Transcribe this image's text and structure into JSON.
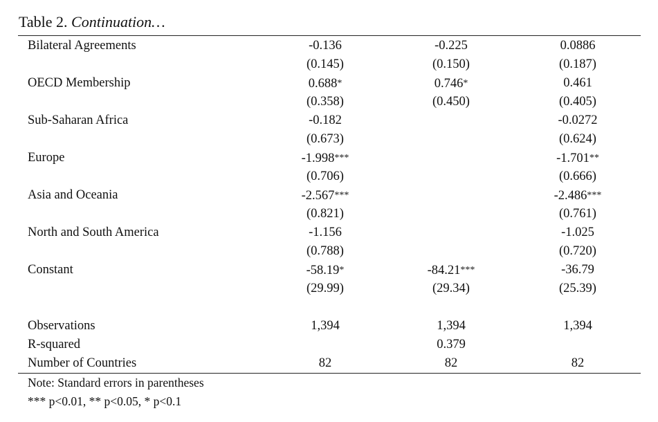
{
  "caption": {
    "label": "Table 2.",
    "continuation": "Continuation…"
  },
  "rows": [
    {
      "label": "Bilateral Agreements",
      "values": [
        "-0.136",
        "-0.225",
        "0.0886"
      ]
    },
    {
      "label": "",
      "values": [
        "(0.145)",
        "(0.150)",
        "(0.187)"
      ]
    },
    {
      "label": "OECD Membership",
      "values": [
        "0.688*",
        "0.746*",
        "0.461"
      ]
    },
    {
      "label": "",
      "values": [
        "(0.358)",
        "(0.450)",
        "(0.405)"
      ]
    },
    {
      "label": "Sub-Saharan Africa",
      "values": [
        "-0.182",
        "",
        "-0.0272"
      ]
    },
    {
      "label": "",
      "values": [
        "(0.673)",
        "",
        "(0.624)"
      ]
    },
    {
      "label": "Europe",
      "values": [
        "-1.998***",
        "",
        "-1.701**"
      ]
    },
    {
      "label": "",
      "values": [
        "(0.706)",
        "",
        "(0.666)"
      ]
    },
    {
      "label": "Asia and Oceania",
      "values": [
        "-2.567***",
        "",
        "-2.486***"
      ]
    },
    {
      "label": "",
      "values": [
        "(0.821)",
        "",
        "(0.761)"
      ]
    },
    {
      "label": "North and South America",
      "values": [
        "-1.156",
        "",
        "-1.025"
      ]
    },
    {
      "label": "",
      "values": [
        "(0.788)",
        "",
        "(0.720)"
      ]
    },
    {
      "label": "Constant",
      "values": [
        "-58.19*",
        "-84.21***",
        "-36.79"
      ]
    },
    {
      "label": "",
      "values": [
        "(29.99)",
        "(29.34)",
        "(25.39)"
      ]
    },
    {
      "spacer": true
    },
    {
      "label": "Observations",
      "values": [
        "1,394",
        "1,394",
        "1,394"
      ]
    },
    {
      "label": "R-squared",
      "values": [
        "",
        "0.379",
        ""
      ]
    },
    {
      "label": "Number of Countries",
      "values": [
        "82",
        "82",
        "82"
      ]
    }
  ],
  "notes": [
    "Note: Standard errors in parentheses",
    "*** p<0.01, ** p<0.05, * p<0.1"
  ]
}
